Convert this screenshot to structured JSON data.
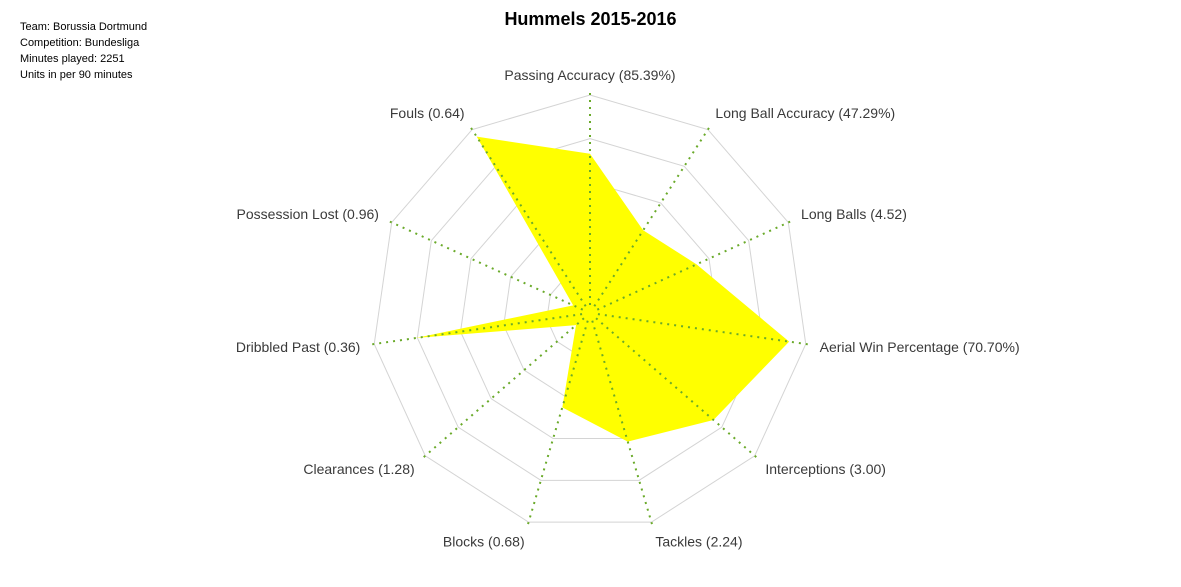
{
  "info": {
    "team": "Team:  Borussia Dortmund",
    "competition": "Competition: Bundesliga",
    "minutes": "Minutes played: 2251",
    "units": "Units in per 90 minutes"
  },
  "chart_data": {
    "type": "radar",
    "title": "Hummels 2015-2016",
    "grid": true,
    "axes": [
      {
        "label": "Passing Accuracy (85.39%)",
        "value": 85.39,
        "fraction": 0.72
      },
      {
        "label": "Long Ball Accuracy (47.29%)",
        "value": 47.29,
        "fraction": 0.43
      },
      {
        "label": "Long Balls (4.52)",
        "value": 4.52,
        "fraction": 0.52
      },
      {
        "label": "Aerial Win Percentage (70.70%)",
        "value": 70.7,
        "fraction": 0.92
      },
      {
        "label": "Interceptions (3.00)",
        "value": 3.0,
        "fraction": 0.74
      },
      {
        "label": "Tackles (2.24)",
        "value": 2.24,
        "fraction": 0.6
      },
      {
        "label": "Blocks (0.68)",
        "value": 0.68,
        "fraction": 0.43
      },
      {
        "label": "Clearances (1.28)",
        "value": 1.28,
        "fraction": 0.05
      },
      {
        "label": "Dribbled Past (0.36)",
        "value": 0.36,
        "fraction": 0.8
      },
      {
        "label": "Possession Lost (0.96)",
        "value": 0.96,
        "fraction": 0.05
      },
      {
        "label": "Fouls (0.64)",
        "value": 0.64,
        "fraction": 0.96
      }
    ],
    "colors": {
      "fill": "#ffff00",
      "grid": "#d4d4d4",
      "spoke": "#6aaa2a"
    }
  }
}
